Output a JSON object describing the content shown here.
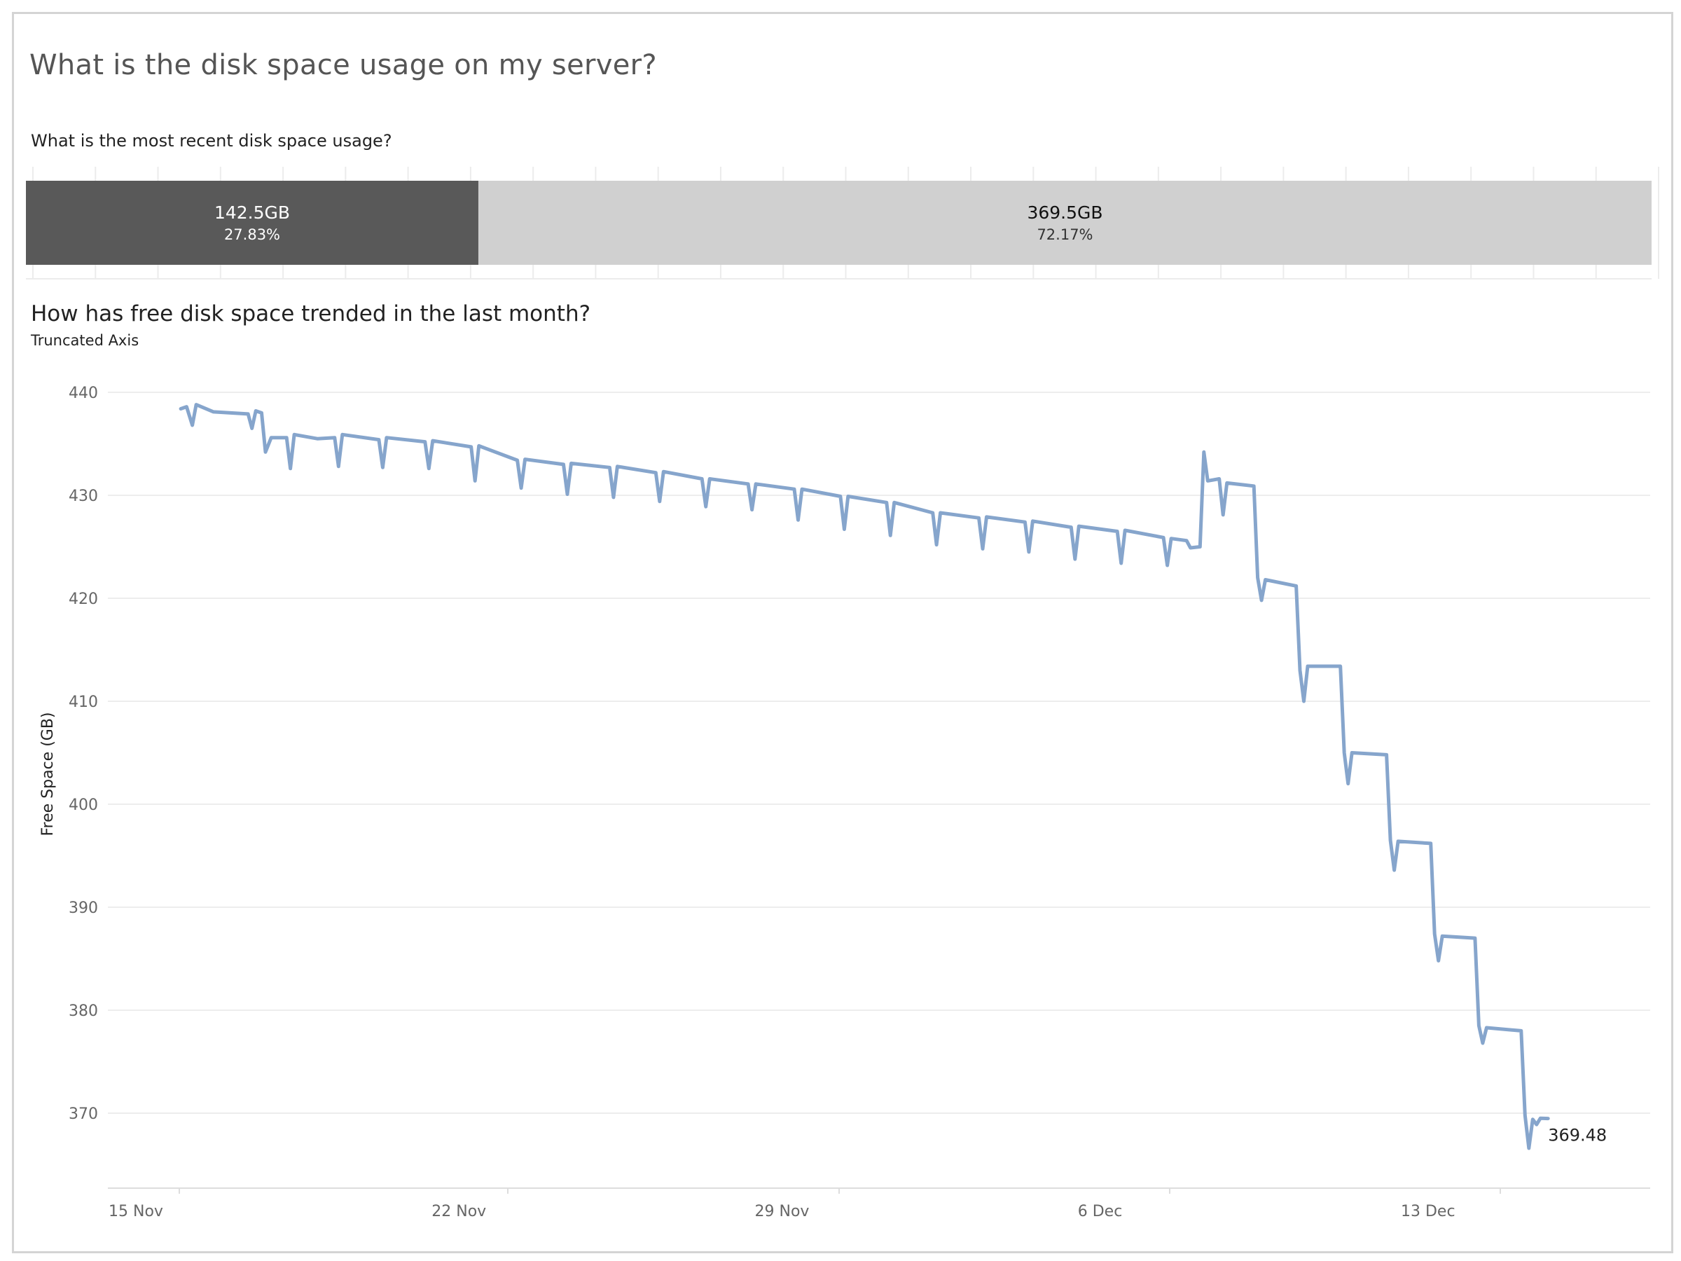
{
  "title": "What is the disk space usage on my server?",
  "usage": {
    "title": "What is the most recent disk space usage?",
    "used": {
      "label": "142.5GB",
      "percent": "27.83%",
      "value": 142.5,
      "color": "#595959"
    },
    "free": {
      "label": "369.5GB",
      "percent": "72.17%",
      "value": 369.5,
      "color": "#d0d0d0"
    }
  },
  "trend": {
    "title": "How has free disk space trended in the last month?",
    "subtitle": "Truncated Axis",
    "last_value_label": "369.48"
  },
  "chart_data": {
    "type": "line",
    "ylabel": "Free Space (GB)",
    "xlabel": "",
    "ylim": [
      363,
      441
    ],
    "yticks": [
      370,
      380,
      390,
      400,
      410,
      420,
      430,
      440
    ],
    "xlim": [
      "2023-11-14",
      "2023-12-18"
    ],
    "xticks": [
      {
        "date": "2023-11-15",
        "label": "15 Nov"
      },
      {
        "date": "2023-11-22",
        "label": "22 Nov"
      },
      {
        "date": "2023-11-29",
        "label": "29 Nov"
      },
      {
        "date": "2023-12-06",
        "label": "6 Dec"
      },
      {
        "date": "2023-12-13",
        "label": "13 Dec"
      }
    ],
    "grid": true,
    "line_color": "#86a5cc",
    "series": [
      {
        "points": [
          [
            "2023-11-15 23:00",
            438.4
          ],
          [
            "2023-11-16 02:00",
            438.6
          ],
          [
            "2023-11-16 05:00",
            436.8
          ],
          [
            "2023-11-16 07:00",
            438.8
          ],
          [
            "2023-11-16 16:00",
            438.1
          ],
          [
            "2023-11-17 10:00",
            437.9
          ],
          [
            "2023-11-17 12:00",
            436.5
          ],
          [
            "2023-11-17 14:00",
            438.2
          ],
          [
            "2023-11-17 17:00",
            438.0
          ],
          [
            "2023-11-17 19:00",
            434.2
          ],
          [
            "2023-11-17 22:00",
            435.6
          ],
          [
            "2023-11-18 06:00",
            435.6
          ],
          [
            "2023-11-18 08:00",
            432.6
          ],
          [
            "2023-11-18 10:00",
            435.9
          ],
          [
            "2023-11-18 22:00",
            435.5
          ],
          [
            "2023-11-19 07:00",
            435.6
          ],
          [
            "2023-11-19 09:00",
            432.8
          ],
          [
            "2023-11-19 11:00",
            435.9
          ],
          [
            "2023-11-20 06:00",
            435.4
          ],
          [
            "2023-11-20 08:00",
            432.7
          ],
          [
            "2023-11-20 10:00",
            435.6
          ],
          [
            "2023-11-21 06:00",
            435.2
          ],
          [
            "2023-11-21 08:00",
            432.6
          ],
          [
            "2023-11-21 10:00",
            435.3
          ],
          [
            "2023-11-22 06:00",
            434.7
          ],
          [
            "2023-11-22 08:00",
            431.4
          ],
          [
            "2023-11-22 10:00",
            434.8
          ],
          [
            "2023-11-23 06:00",
            433.4
          ],
          [
            "2023-11-23 08:00",
            430.7
          ],
          [
            "2023-11-23 10:00",
            433.5
          ],
          [
            "2023-11-24 06:00",
            433.0
          ],
          [
            "2023-11-24 08:00",
            430.1
          ],
          [
            "2023-11-24 10:00",
            433.1
          ],
          [
            "2023-11-25 06:00",
            432.7
          ],
          [
            "2023-11-25 08:00",
            429.8
          ],
          [
            "2023-11-25 10:00",
            432.8
          ],
          [
            "2023-11-26 06:00",
            432.2
          ],
          [
            "2023-11-26 08:00",
            429.4
          ],
          [
            "2023-11-26 10:00",
            432.3
          ],
          [
            "2023-11-27 06:00",
            431.6
          ],
          [
            "2023-11-27 08:00",
            428.9
          ],
          [
            "2023-11-27 10:00",
            431.6
          ],
          [
            "2023-11-28 06:00",
            431.1
          ],
          [
            "2023-11-28 08:00",
            428.6
          ],
          [
            "2023-11-28 10:00",
            431.1
          ],
          [
            "2023-11-29 06:00",
            430.6
          ],
          [
            "2023-11-29 08:00",
            427.6
          ],
          [
            "2023-11-29 10:00",
            430.6
          ],
          [
            "2023-11-30 06:00",
            429.9
          ],
          [
            "2023-11-30 08:00",
            426.7
          ],
          [
            "2023-11-30 10:00",
            429.9
          ],
          [
            "2023-12-01 06:00",
            429.3
          ],
          [
            "2023-12-01 08:00",
            426.1
          ],
          [
            "2023-12-01 10:00",
            429.3
          ],
          [
            "2023-12-02 06:00",
            428.3
          ],
          [
            "2023-12-02 08:00",
            425.2
          ],
          [
            "2023-12-02 10:00",
            428.3
          ],
          [
            "2023-12-03 06:00",
            427.8
          ],
          [
            "2023-12-03 08:00",
            424.8
          ],
          [
            "2023-12-03 10:00",
            427.9
          ],
          [
            "2023-12-04 06:00",
            427.4
          ],
          [
            "2023-12-04 08:00",
            424.5
          ],
          [
            "2023-12-04 10:00",
            427.5
          ],
          [
            "2023-12-05 06:00",
            426.9
          ],
          [
            "2023-12-05 08:00",
            423.8
          ],
          [
            "2023-12-05 10:00",
            427.0
          ],
          [
            "2023-12-06 06:00",
            426.5
          ],
          [
            "2023-12-06 08:00",
            423.4
          ],
          [
            "2023-12-06 10:00",
            426.6
          ],
          [
            "2023-12-07 06:00",
            425.9
          ],
          [
            "2023-12-07 08:00",
            423.2
          ],
          [
            "2023-12-07 10:00",
            425.8
          ],
          [
            "2023-12-07 18:00",
            425.6
          ],
          [
            "2023-12-07 20:00",
            424.9
          ],
          [
            "2023-12-08 01:00",
            425.0
          ],
          [
            "2023-12-08 03:00",
            434.2
          ],
          [
            "2023-12-08 05:00",
            431.4
          ],
          [
            "2023-12-08 11:00",
            431.6
          ],
          [
            "2023-12-08 13:00",
            428.1
          ],
          [
            "2023-12-08 15:00",
            431.2
          ],
          [
            "2023-12-09 05:00",
            430.9
          ],
          [
            "2023-12-09 07:00",
            422.0
          ],
          [
            "2023-12-09 09:00",
            419.8
          ],
          [
            "2023-12-09 11:00",
            421.8
          ],
          [
            "2023-12-10 03:00",
            421.2
          ],
          [
            "2023-12-10 05:00",
            413.0
          ],
          [
            "2023-12-10 07:00",
            410.0
          ],
          [
            "2023-12-10 09:00",
            413.4
          ],
          [
            "2023-12-11 02:00",
            413.4
          ],
          [
            "2023-12-11 04:00",
            405.0
          ],
          [
            "2023-12-11 06:00",
            402.0
          ],
          [
            "2023-12-11 08:00",
            405.0
          ],
          [
            "2023-12-12 02:00",
            404.8
          ],
          [
            "2023-12-12 04:00",
            396.5
          ],
          [
            "2023-12-12 06:00",
            393.6
          ],
          [
            "2023-12-12 08:00",
            396.4
          ],
          [
            "2023-12-13 01:00",
            396.2
          ],
          [
            "2023-12-13 03:00",
            387.4
          ],
          [
            "2023-12-13 05:00",
            384.8
          ],
          [
            "2023-12-13 07:00",
            387.2
          ],
          [
            "2023-12-14 00:00",
            387.0
          ],
          [
            "2023-12-14 02:00",
            378.5
          ],
          [
            "2023-12-14 04:00",
            376.8
          ],
          [
            "2023-12-14 06:00",
            378.3
          ],
          [
            "2023-12-15 00:00",
            378.0
          ],
          [
            "2023-12-15 02:00",
            369.8
          ],
          [
            "2023-12-15 04:00",
            366.6
          ],
          [
            "2023-12-15 06:00",
            369.4
          ],
          [
            "2023-12-15 08:00",
            368.9
          ],
          [
            "2023-12-15 10:00",
            369.5
          ],
          [
            "2023-12-15 14:00",
            369.48
          ]
        ]
      }
    ]
  }
}
